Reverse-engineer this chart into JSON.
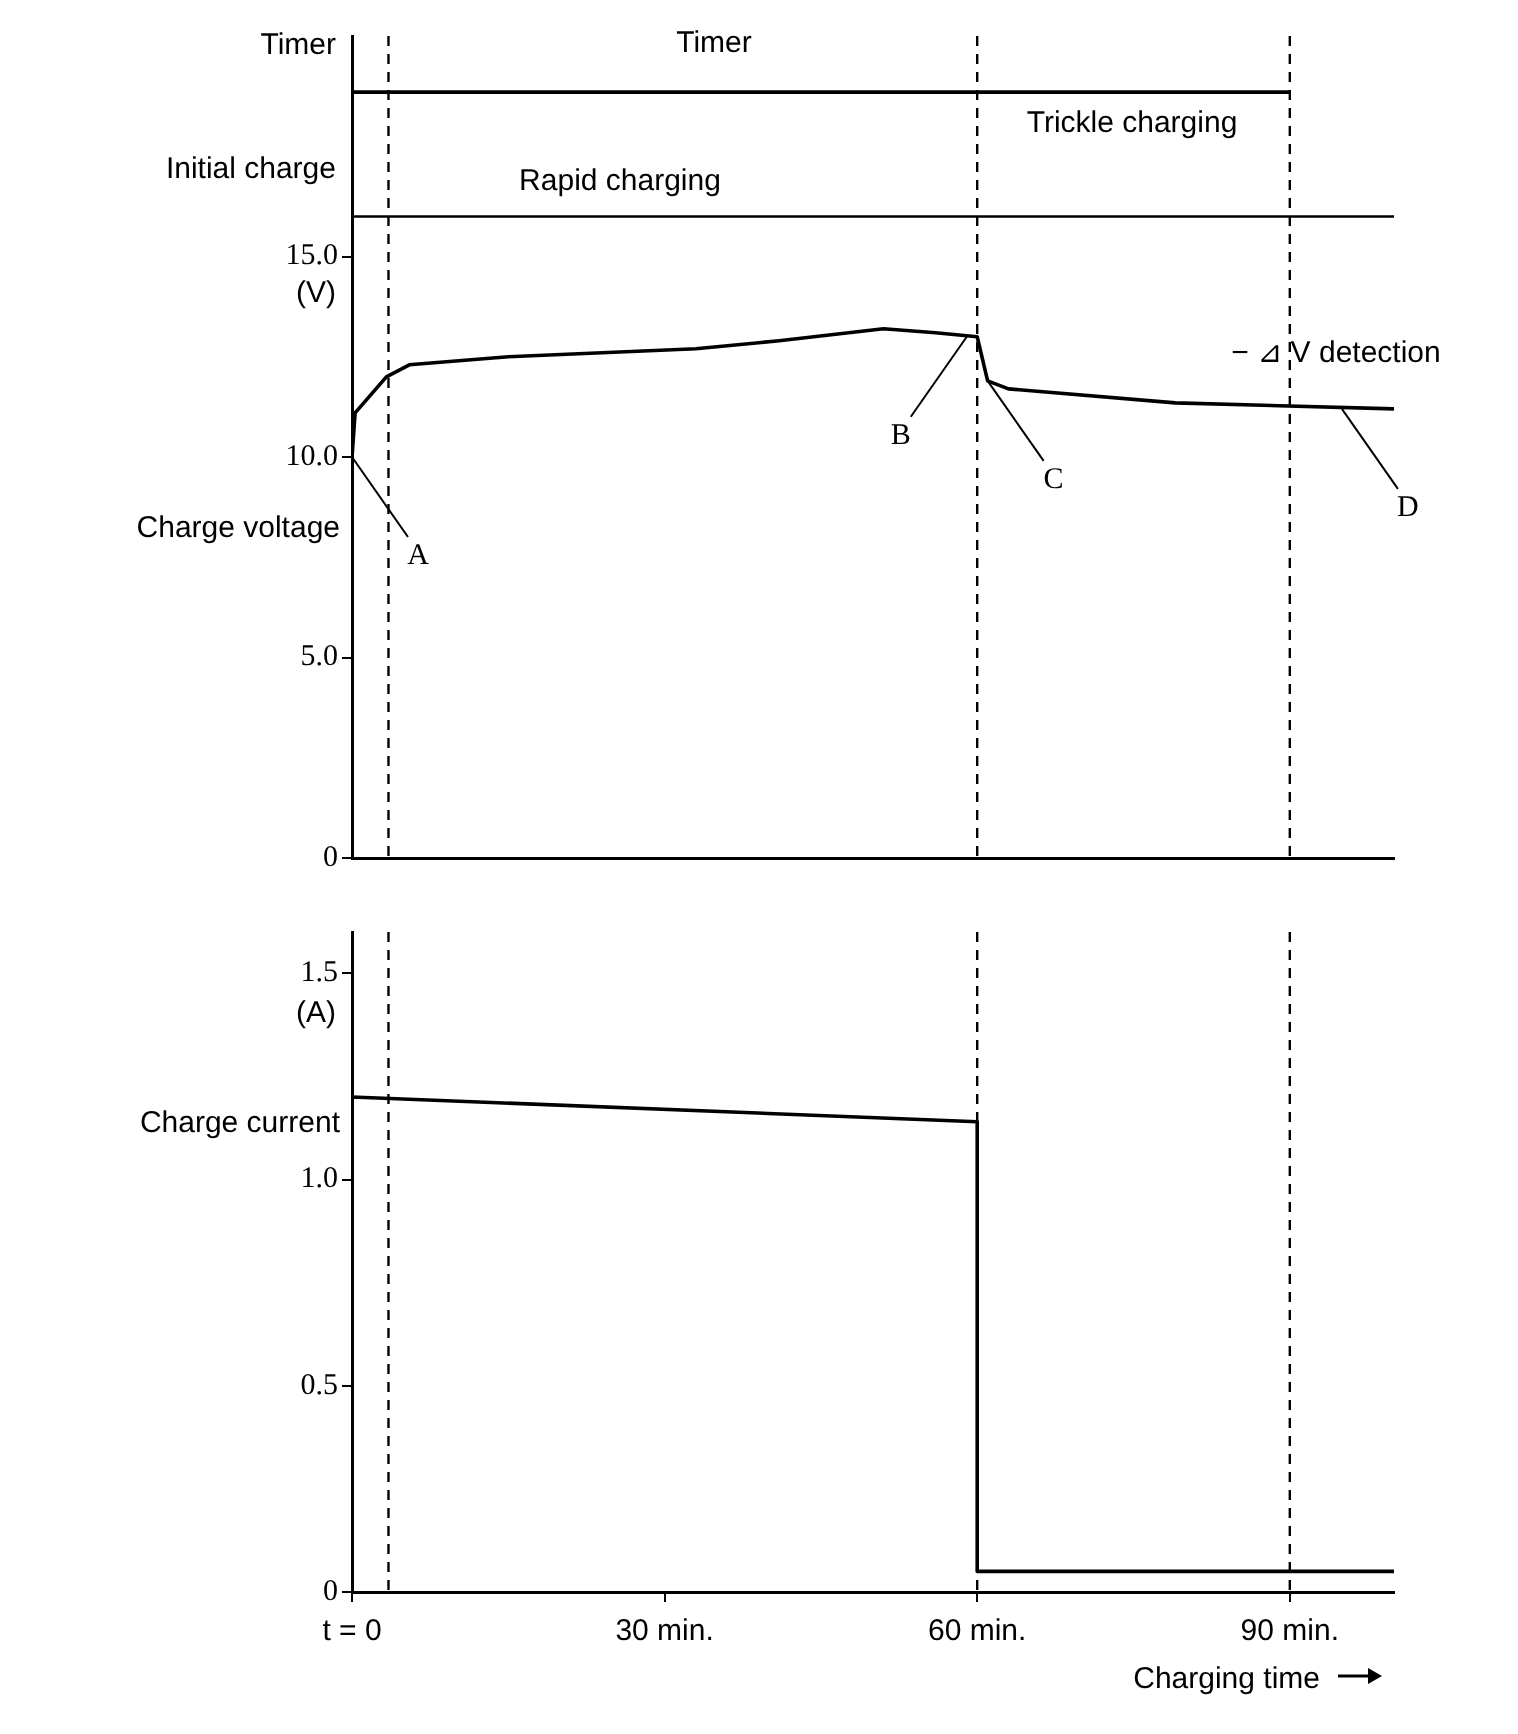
{
  "chart_data": [
    {
      "type": "line",
      "ylabel": "Charge voltage",
      "xlim": [
        0,
        100
      ],
      "ylim": [
        0,
        20.5
      ],
      "tick_labels": "y",
      "yticks": [
        0,
        {
          "value": 5,
          "label": "5.0"
        },
        {
          "value": 10,
          "label": "10.0"
        },
        {
          "value": 15,
          "label": "15.0"
        }
      ],
      "series": [
        {
          "color": "#000000",
          "x": [
            0,
            0.3,
            3.3,
            5.5,
            15,
            33,
            41,
            51,
            56,
            60,
            61,
            63,
            79,
            100
          ],
          "values": [
            10.0,
            11.1,
            12.0,
            12.3,
            12.5,
            12.7,
            12.9,
            13.2,
            13.1,
            13.0,
            11.9,
            11.7,
            11.35,
            11.2
          ]
        },
        {
          "color": "#000000",
          "x": [
            0,
            90
          ],
          "values": [
            19.1,
            19.1
          ]
        }
      ],
      "ref_lines": [
        {
          "axis": "y",
          "value": 16,
          "line_style": "solid"
        },
        {
          "axis": "x",
          "value": 3.5,
          "line_style": "dashed"
        },
        {
          "axis": "x",
          "value": 60,
          "line_style": "dashed"
        },
        {
          "axis": "x",
          "value": 90,
          "line_style": "dashed"
        }
      ],
      "annotations": [
        "Timer",
        "Initial charge",
        "(V)",
        "Timer",
        "Rapid charging",
        "Trickle charging",
        "− ⊿ V detection",
        {
          "text": "A",
          "x": 0,
          "y": 10.0
        },
        {
          "text": "B",
          "x": 59,
          "y": 13.0
        },
        {
          "text": "C",
          "x": 61,
          "y": 11.9
        },
        {
          "text": "D",
          "x": 95,
          "y": 11.2
        }
      ],
      "legend": false,
      "marker": "none",
      "line_style": "solid"
    },
    {
      "type": "line",
      "ylabel": "Charge current",
      "xlabel": "Charging time",
      "xlim": [
        0,
        100
      ],
      "ylim": [
        0,
        1.6
      ],
      "xticks": [
        {
          "value": 0,
          "label": "t = 0"
        },
        {
          "value": 30,
          "label": "30 min."
        },
        {
          "value": 60,
          "label": "60 min."
        },
        {
          "value": 90,
          "label": "90 min."
        }
      ],
      "yticks": [
        0,
        {
          "value": 0.5,
          "label": "0.5"
        },
        {
          "value": 1,
          "label": "1.0"
        },
        {
          "value": 1.5,
          "label": "1.5"
        }
      ],
      "series": [
        {
          "color": "#000000",
          "x": [
            0,
            0,
            60,
            60,
            100
          ],
          "values": [
            0,
            1.2,
            1.14,
            0.05,
            0.05
          ]
        }
      ],
      "ref_lines": [
        {
          "axis": "x",
          "value": 3.5,
          "line_style": "dashed"
        },
        {
          "axis": "x",
          "value": 60,
          "line_style": "dashed"
        },
        {
          "axis": "x",
          "value": 90,
          "line_style": "dashed"
        }
      ],
      "annotations": [
        "(A)"
      ],
      "legend": false,
      "marker": "none",
      "line_style": "solid"
    }
  ]
}
